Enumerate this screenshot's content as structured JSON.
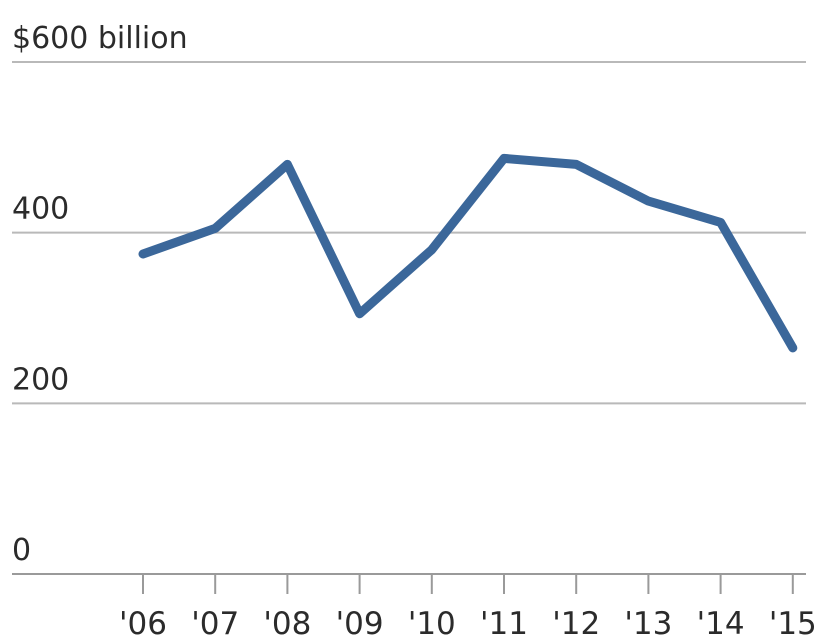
{
  "chart_data": {
    "type": "line",
    "x": [
      "'06",
      "'07",
      "'08",
      "'09",
      "'10",
      "'11",
      "'12",
      "'13",
      "'14",
      "'15"
    ],
    "series": [
      {
        "values": [
          375,
          405,
          480,
          305,
          380,
          487,
          480,
          437,
          412,
          265
        ]
      }
    ],
    "y_tick_labels": [
      "0",
      "200",
      "400",
      "$600 billion"
    ],
    "y_ticks": [
      0,
      200,
      400,
      600
    ],
    "ylim": [
      0,
      600
    ],
    "grid": true,
    "legend": "none",
    "colors": {
      "line": "#3b679a",
      "grid": "#b9b9b9",
      "axis": "#9a9a9a",
      "text": "#2b2b2b"
    }
  }
}
